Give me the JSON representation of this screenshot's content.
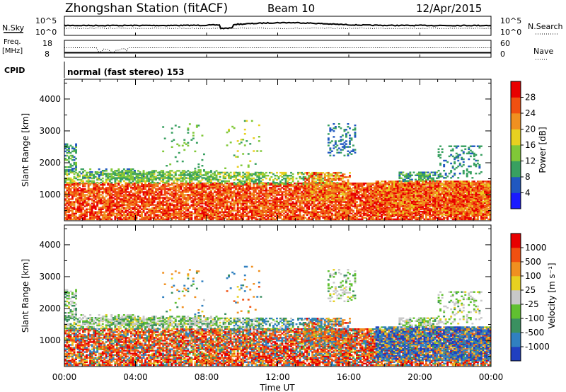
{
  "header": {
    "station": "Zhongshan Station (fitACF)",
    "beam": "Beam 10",
    "date": "12/Apr/2015"
  },
  "top_panels": {
    "nsky_label": "N.Sky",
    "nsearch_label": "N.Search",
    "freq_label": "Freq.",
    "freq_unit": "[MHz]",
    "nave_label": "Nave",
    "cpid_label": "CPID",
    "cpid_value": "normal (fast stereo) 153",
    "noise_left_top": "10^5",
    "noise_left_bottom": "10^0",
    "noise_right_top": "10^5",
    "noise_right_bottom": "10^0",
    "freq_left_top": "18",
    "freq_left_bottom": "8",
    "nave_right_top": "60",
    "nave_right_bottom": "0"
  },
  "chart_data": [
    {
      "type": "heatmap",
      "name": "power",
      "ylabel": "Slant Range [km]",
      "xlabel": "Time UT",
      "x_ticks": [
        "00:00",
        "04:00",
        "08:00",
        "12:00",
        "16:00",
        "20:00",
        "00:00"
      ],
      "x_range_hours": [
        0,
        24
      ],
      "y_ticks": [
        1000,
        2000,
        3000,
        4000
      ],
      "ylim": [
        180,
        4620
      ],
      "colorbar_label": "Power [dB]",
      "colorbar_ticks": [
        "4",
        "8",
        "12",
        "16",
        "20",
        "24",
        "28"
      ],
      "colorbar_range": [
        0,
        32
      ],
      "colors": [
        "#1a1aff",
        "#2058c0",
        "#38a060",
        "#80c838",
        "#e8d020",
        "#f09020",
        "#f05010",
        "#e80000"
      ]
    },
    {
      "type": "heatmap",
      "name": "velocity",
      "ylabel": "Slant Range [km]",
      "xlabel": "Time UT",
      "x_ticks": [
        "00:00",
        "04:00",
        "08:00",
        "12:00",
        "16:00",
        "20:00",
        "00:00"
      ],
      "x_range_hours": [
        0,
        24
      ],
      "y_ticks": [
        1000,
        2000,
        3000,
        4000
      ],
      "ylim": [
        180,
        4620
      ],
      "colorbar_label": "Velocity [m s-1]",
      "colorbar_ticks": [
        "1000",
        "500",
        "100",
        "25",
        "-25",
        "-100",
        "-500",
        "-1000"
      ],
      "colors": [
        "#2040c0",
        "#3080c0",
        "#3a9060",
        "#60c030",
        "#c8c8c8",
        "#e8d020",
        "#f09020",
        "#f05010",
        "#e80000"
      ]
    }
  ],
  "legend": {
    "power_axis_title": "Power [dB]",
    "velocity_axis_title": "Velocity [m s⁻¹]",
    "xlabel": "Time UT"
  }
}
